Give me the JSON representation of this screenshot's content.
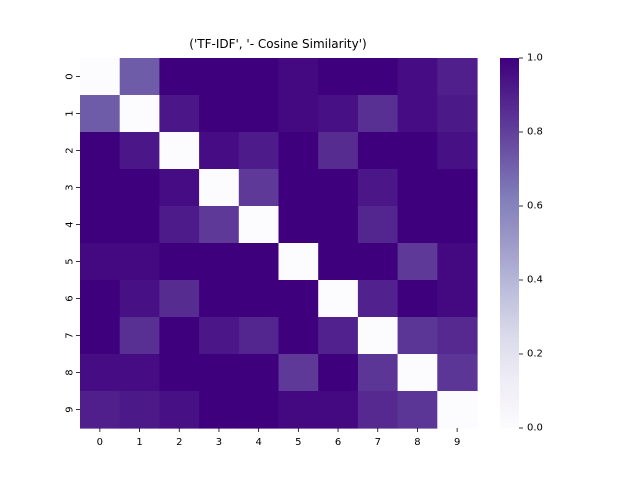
{
  "chart_data": {
    "type": "heatmap",
    "title": "('TF-IDF', '- Cosine Similarity')",
    "xlabel": "",
    "ylabel": "",
    "x_categories": [
      "0",
      "1",
      "2",
      "3",
      "4",
      "5",
      "6",
      "7",
      "8",
      "9"
    ],
    "y_categories": [
      "0",
      "1",
      "2",
      "3",
      "4",
      "5",
      "6",
      "7",
      "8",
      "9"
    ],
    "values": [
      [
        0.0,
        0.72,
        1.0,
        1.0,
        1.0,
        0.97,
        1.0,
        1.0,
        0.96,
        0.9
      ],
      [
        0.72,
        0.0,
        0.93,
        1.0,
        1.0,
        0.97,
        0.95,
        0.85,
        0.96,
        0.92
      ],
      [
        1.0,
        0.93,
        0.0,
        0.96,
        0.91,
        1.0,
        0.86,
        1.0,
        1.0,
        0.95
      ],
      [
        1.0,
        1.0,
        0.96,
        0.0,
        0.82,
        1.0,
        1.0,
        0.93,
        1.0,
        1.0
      ],
      [
        1.0,
        1.0,
        0.91,
        0.82,
        0.0,
        1.0,
        1.0,
        0.88,
        1.0,
        1.0
      ],
      [
        0.97,
        0.97,
        1.0,
        1.0,
        1.0,
        0.0,
        1.0,
        1.0,
        0.82,
        0.97
      ],
      [
        1.0,
        0.95,
        0.86,
        1.0,
        1.0,
        1.0,
        0.0,
        0.89,
        1.0,
        0.97
      ],
      [
        1.0,
        0.85,
        1.0,
        0.93,
        0.88,
        1.0,
        0.89,
        0.0,
        0.83,
        0.87
      ],
      [
        0.96,
        0.96,
        1.0,
        1.0,
        1.0,
        0.82,
        1.0,
        0.83,
        0.0,
        0.83
      ],
      [
        0.9,
        0.92,
        0.95,
        1.0,
        1.0,
        0.97,
        0.97,
        0.87,
        0.83,
        0.0
      ]
    ],
    "colorbar": {
      "min": 0.0,
      "max": 1.0,
      "ticks": [
        "0.0",
        "0.2",
        "0.4",
        "0.6",
        "0.8",
        "1.0"
      ],
      "colormap": "Purples",
      "color_low": "#fcfbfd",
      "color_high": "#3f007d"
    },
    "grid": false
  }
}
